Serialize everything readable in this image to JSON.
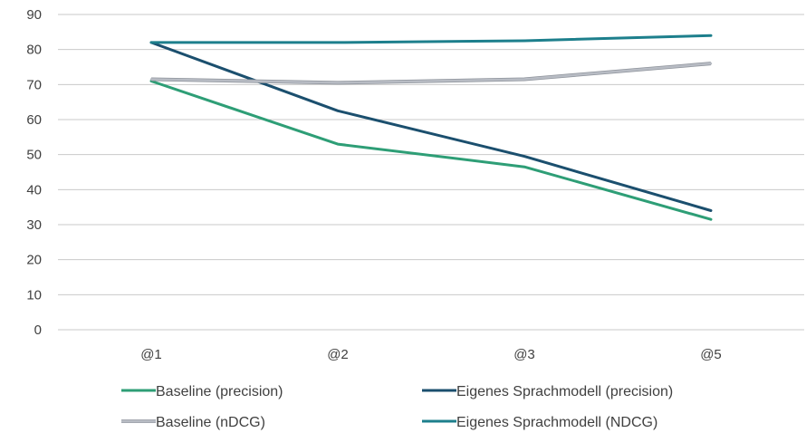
{
  "chart_data": {
    "type": "line",
    "title": "",
    "xlabel": "",
    "ylabel": "",
    "categories": [
      "@1",
      "@2",
      "@3",
      "@5"
    ],
    "ylim": [
      0,
      90
    ],
    "yticks": [
      0,
      10,
      20,
      30,
      40,
      50,
      60,
      70,
      80,
      90
    ],
    "grid": true,
    "legend_position": "bottom",
    "series": [
      {
        "name": "Baseline (precision)",
        "values": [
          71.0,
          53.0,
          46.5,
          31.5
        ],
        "color": "#2e9e76"
      },
      {
        "name": "Eigenes Sprachmodell (precision)",
        "values": [
          82.0,
          62.5,
          49.5,
          34.0
        ],
        "color": "#1b4f6e"
      },
      {
        "name": "Baseline (nDCG)",
        "values": [
          71.5,
          70.5,
          71.5,
          76.0
        ],
        "color": "#b8bcc4"
      },
      {
        "name": "Eigenes Sprachmodell (NDCG)",
        "values": [
          82.0,
          82.0,
          82.5,
          84.0
        ],
        "color": "#1d7f8c"
      }
    ]
  }
}
